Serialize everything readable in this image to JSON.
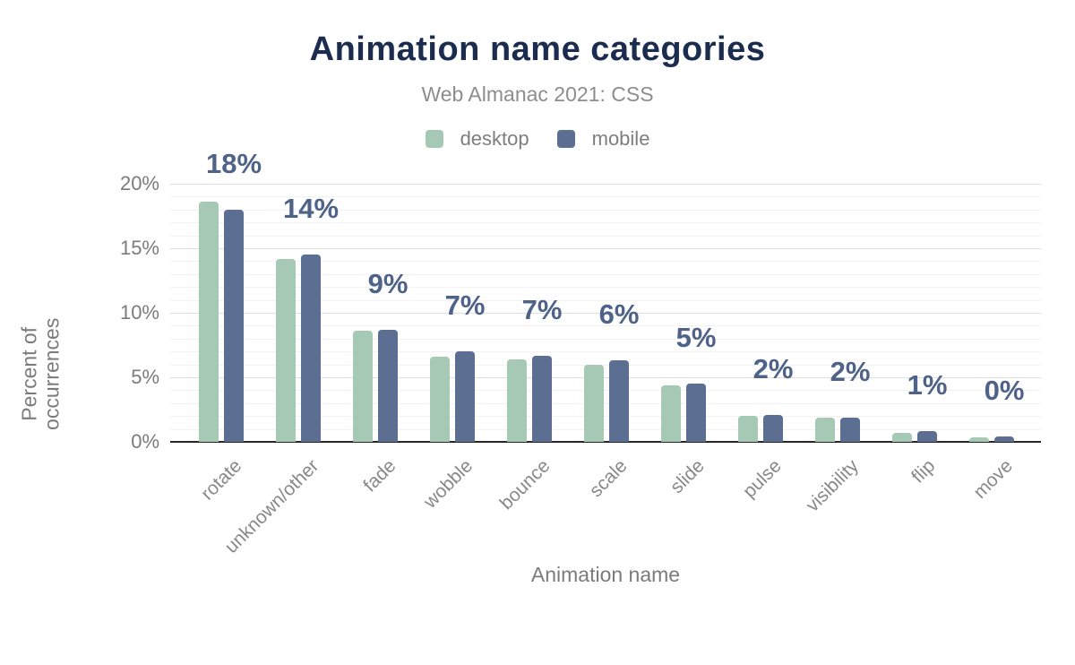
{
  "chart_data": {
    "type": "bar",
    "title": "Animation name categories",
    "subtitle": "Web Almanac 2021: CSS",
    "xlabel": "Animation name",
    "ylabel": "Percent of occurrences",
    "categories": [
      "rotate",
      "unknown/other",
      "fade",
      "wobble",
      "bounce",
      "scale",
      "slide",
      "pulse",
      "visibility",
      "flip",
      "move"
    ],
    "series": [
      {
        "name": "desktop",
        "color": "#a6c9b6",
        "values": [
          18.6,
          14.2,
          8.6,
          6.6,
          6.4,
          6.0,
          4.4,
          2.0,
          1.9,
          0.7,
          0.35
        ]
      },
      {
        "name": "mobile",
        "color": "#5c6e91",
        "values": [
          18.0,
          14.5,
          8.7,
          7.0,
          6.7,
          6.3,
          4.5,
          2.1,
          1.9,
          0.8,
          0.45
        ]
      }
    ],
    "bar_labels": [
      "18%",
      "14%",
      "9%",
      "7%",
      "7%",
      "6%",
      "5%",
      "2%",
      "2%",
      "1%",
      "0%"
    ],
    "y_ticks": [
      {
        "value": 0,
        "label": "0%"
      },
      {
        "value": 5,
        "label": "5%"
      },
      {
        "value": 10,
        "label": "10%"
      },
      {
        "value": 15,
        "label": "15%"
      },
      {
        "value": 20,
        "label": "20%"
      }
    ],
    "ylim": [
      0,
      20
    ],
    "grid": {
      "minor_step": 1,
      "major_step": 5,
      "enabled": true
    },
    "legend_position": "top"
  },
  "colors": {
    "title": "#1c2c4f",
    "subtitle": "#8d8d8d",
    "legend_text": "#7e7e7e",
    "axis_text": "#7b7b7b",
    "category_text": "#888888",
    "bar_label": "#4f6388",
    "grid_major": "#e0e0e0",
    "grid_minor": "#f2f2f2",
    "axis_line": "#262626",
    "background": "#ffffff"
  }
}
